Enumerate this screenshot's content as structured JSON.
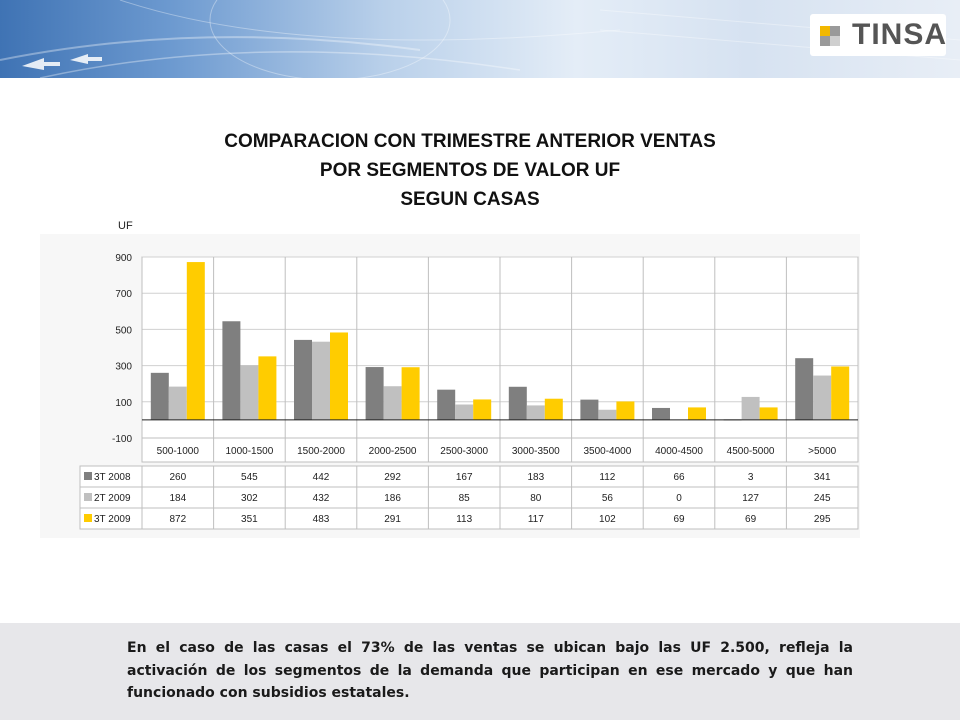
{
  "brand": {
    "logo_text": "TINSA"
  },
  "title": {
    "line1": "COMPARACION CON TRIMESTRE ANTERIOR VENTAS",
    "line2": "POR SEGMENTOS DE VALOR UF",
    "line3": "SEGUN CASAS"
  },
  "chart_data": {
    "type": "bar",
    "ylabel": "UF",
    "ylim": [
      -100,
      900
    ],
    "yticks": [
      -100,
      100,
      300,
      500,
      700,
      900
    ],
    "grid": true,
    "categories": [
      "500-1000",
      "1000-1500",
      "1500-2000",
      "2000-2500",
      "2500-3000",
      "3000-3500",
      "3500-4000",
      "4000-4500",
      "4500-5000",
      ">5000"
    ],
    "series": [
      {
        "name": "3T 2008",
        "color": "#7f7f7f",
        "values": [
          260,
          545,
          442,
          292,
          167,
          183,
          112,
          66,
          3,
          341
        ]
      },
      {
        "name": "2T 2009",
        "color": "#c0c0c0",
        "values": [
          184,
          302,
          432,
          186,
          85,
          80,
          56,
          0,
          127,
          245
        ]
      },
      {
        "name": "3T 2009",
        "color": "#ffcc00",
        "values": [
          872,
          351,
          483,
          291,
          113,
          117,
          102,
          69,
          69,
          295
        ]
      }
    ],
    "data_table": true
  },
  "footer": {
    "text": "En el caso de las casas el 73% de las ventas se ubican bajo las UF 2.500, refleja la activación de los segmentos de la demanda que participan en ese mercado y que han funcionado con subsidios estatales."
  }
}
